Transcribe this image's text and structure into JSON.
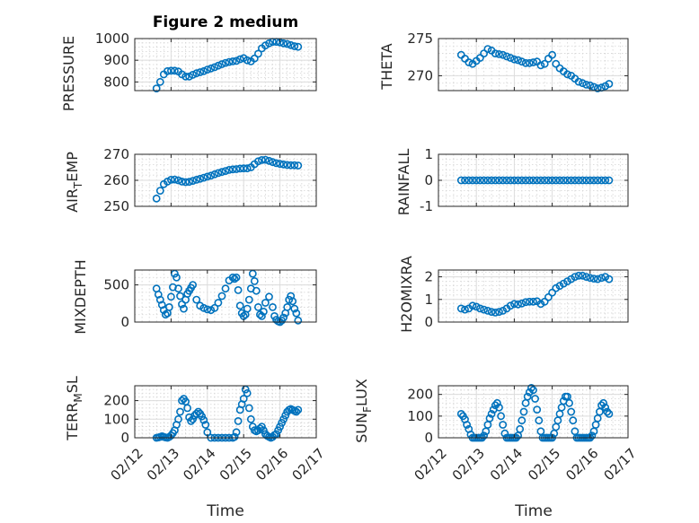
{
  "chart_data": [
    {
      "type": "scatter",
      "title": "Figure 2 medium",
      "ylabel": "PRESSURE",
      "xlabel": "",
      "ylim": [
        760,
        1000
      ],
      "yticks": [
        800,
        900,
        1000
      ],
      "ytick_labels": [
        "800",
        "900",
        "1000"
      ],
      "xlim": [
        0,
        5
      ],
      "xticks": [
        0,
        1,
        2,
        3,
        4,
        5
      ],
      "xtick_labels": [],
      "grid": true,
      "color": "#0072bd",
      "x": [
        0.6,
        0.7,
        0.8,
        0.9,
        1.0,
        1.1,
        1.2,
        1.3,
        1.4,
        1.5,
        1.6,
        1.7,
        1.8,
        1.9,
        2.0,
        2.1,
        2.2,
        2.3,
        2.4,
        2.5,
        2.6,
        2.7,
        2.8,
        2.9,
        3.0,
        3.1,
        3.2,
        3.3,
        3.4,
        3.5,
        3.6,
        3.7,
        3.8,
        3.9,
        4.0,
        4.1,
        4.2,
        4.3,
        4.4,
        4.5
      ],
      "y": [
        770,
        800,
        835,
        850,
        852,
        852,
        848,
        835,
        825,
        825,
        833,
        840,
        845,
        850,
        857,
        862,
        868,
        875,
        882,
        888,
        892,
        895,
        897,
        905,
        910,
        900,
        895,
        908,
        930,
        955,
        968,
        978,
        985,
        985,
        982,
        978,
        975,
        970,
        965,
        962
      ]
    },
    {
      "type": "scatter",
      "title": "",
      "ylabel": "THETA",
      "xlabel": "",
      "ylim": [
        268,
        275
      ],
      "yticks": [
        270,
        275
      ],
      "ytick_labels": [
        "270",
        "275"
      ],
      "xlim": [
        0,
        5
      ],
      "xticks": [
        0,
        1,
        2,
        3,
        4,
        5
      ],
      "xtick_labels": [],
      "grid": true,
      "color": "#0072bd",
      "x": [
        0.6,
        0.7,
        0.8,
        0.9,
        1.0,
        1.1,
        1.2,
        1.3,
        1.4,
        1.5,
        1.6,
        1.7,
        1.8,
        1.9,
        2.0,
        2.1,
        2.2,
        2.3,
        2.4,
        2.5,
        2.6,
        2.7,
        2.8,
        2.9,
        3.0,
        3.1,
        3.2,
        3.3,
        3.4,
        3.5,
        3.6,
        3.7,
        3.8,
        3.9,
        4.0,
        4.1,
        4.2,
        4.3,
        4.4,
        4.5
      ],
      "y": [
        272.8,
        272.3,
        271.8,
        271.6,
        272.0,
        272.4,
        273.0,
        273.6,
        273.4,
        273.0,
        272.9,
        272.8,
        272.6,
        272.4,
        272.2,
        272.1,
        271.9,
        271.7,
        271.7,
        271.8,
        271.9,
        271.4,
        271.6,
        272.3,
        272.8,
        271.6,
        271.0,
        270.6,
        270.2,
        270.0,
        269.6,
        269.2,
        269.0,
        268.8,
        268.7,
        268.5,
        268.3,
        268.4,
        268.6,
        268.9
      ]
    },
    {
      "type": "scatter",
      "title": "",
      "ylabel": "AIR_TEMP",
      "ylabel_main1": "AIR",
      "ylabel_sub": "T",
      "ylabel_main2": "EMP",
      "xlabel": "",
      "ylim": [
        250,
        270
      ],
      "yticks": [
        250,
        260,
        270
      ],
      "ytick_labels": [
        "250",
        "260",
        "270"
      ],
      "xlim": [
        0,
        5
      ],
      "xticks": [
        0,
        1,
        2,
        3,
        4,
        5
      ],
      "xtick_labels": [],
      "grid": true,
      "color": "#0072bd",
      "x": [
        0.6,
        0.7,
        0.8,
        0.9,
        1.0,
        1.1,
        1.2,
        1.3,
        1.4,
        1.5,
        1.6,
        1.7,
        1.8,
        1.9,
        2.0,
        2.1,
        2.2,
        2.3,
        2.4,
        2.5,
        2.6,
        2.7,
        2.8,
        2.9,
        3.0,
        3.1,
        3.2,
        3.3,
        3.4,
        3.5,
        3.6,
        3.7,
        3.8,
        3.9,
        4.0,
        4.1,
        4.2,
        4.3,
        4.4,
        4.5
      ],
      "y": [
        253,
        256,
        258.5,
        259.5,
        260.2,
        260.3,
        260.0,
        259.5,
        259.3,
        259.4,
        259.8,
        260.2,
        260.6,
        261.0,
        261.4,
        261.8,
        262.3,
        262.8,
        263.2,
        263.6,
        264.0,
        264.2,
        264.3,
        264.5,
        264.6,
        264.6,
        265.0,
        266.2,
        267.3,
        267.8,
        267.9,
        267.5,
        267.0,
        266.6,
        266.3,
        266.1,
        265.9,
        265.8,
        265.8,
        265.7
      ]
    },
    {
      "type": "scatter",
      "title": "",
      "ylabel": "RAINFALL",
      "xlabel": "",
      "ylim": [
        -1,
        1
      ],
      "yticks": [
        -1,
        0,
        1
      ],
      "ytick_labels": [
        "-1",
        "0",
        "1"
      ],
      "xlim": [
        0,
        5
      ],
      "xticks": [
        0,
        1,
        2,
        3,
        4,
        5
      ],
      "xtick_labels": [],
      "grid": true,
      "color": "#0072bd",
      "x": [
        0.6,
        0.7,
        0.8,
        0.9,
        1.0,
        1.1,
        1.2,
        1.3,
        1.4,
        1.5,
        1.6,
        1.7,
        1.8,
        1.9,
        2.0,
        2.1,
        2.2,
        2.3,
        2.4,
        2.5,
        2.6,
        2.7,
        2.8,
        2.9,
        3.0,
        3.1,
        3.2,
        3.3,
        3.4,
        3.5,
        3.6,
        3.7,
        3.8,
        3.9,
        4.0,
        4.1,
        4.2,
        4.3,
        4.4,
        4.5
      ],
      "y": [
        0,
        0,
        0,
        0,
        0,
        0,
        0,
        0,
        0,
        0,
        0,
        0,
        0,
        0,
        0,
        0,
        0,
        0,
        0,
        0,
        0,
        0,
        0,
        0,
        0,
        0,
        0,
        0,
        0,
        0,
        0,
        0,
        0,
        0,
        0,
        0,
        0,
        0,
        0,
        0
      ]
    },
    {
      "type": "scatter",
      "title": "",
      "ylabel": "MIXDEPTH",
      "xlabel": "",
      "ylim": [
        0,
        700
      ],
      "yticks": [
        0,
        500
      ],
      "ytick_labels": [
        "0",
        "500"
      ],
      "xlim": [
        0,
        5
      ],
      "xticks": [
        0,
        1,
        2,
        3,
        4,
        5
      ],
      "xtick_labels": [],
      "grid": true,
      "color": "#0072bd",
      "x": [
        0.6,
        0.65,
        0.7,
        0.75,
        0.8,
        0.85,
        0.9,
        0.95,
        1.0,
        1.05,
        1.1,
        1.15,
        1.2,
        1.25,
        1.3,
        1.35,
        1.4,
        1.45,
        1.5,
        1.55,
        1.6,
        1.7,
        1.8,
        1.9,
        2.0,
        2.1,
        2.2,
        2.3,
        2.4,
        2.5,
        2.6,
        2.7,
        2.75,
        2.8,
        2.85,
        2.9,
        2.95,
        3.0,
        3.05,
        3.1,
        3.15,
        3.2,
        3.25,
        3.3,
        3.35,
        3.4,
        3.45,
        3.5,
        3.55,
        3.6,
        3.7,
        3.8,
        3.85,
        3.9,
        3.95,
        4.0,
        4.05,
        4.1,
        4.15,
        4.2,
        4.25,
        4.3,
        4.35,
        4.4,
        4.45,
        4.5
      ],
      "y": [
        450,
        370,
        300,
        230,
        160,
        100,
        120,
        200,
        340,
        470,
        650,
        600,
        450,
        350,
        240,
        180,
        300,
        380,
        420,
        460,
        500,
        300,
        220,
        190,
        170,
        160,
        190,
        260,
        350,
        450,
        560,
        600,
        580,
        600,
        430,
        220,
        120,
        80,
        100,
        180,
        300,
        450,
        650,
        550,
        420,
        200,
        100,
        80,
        140,
        260,
        340,
        200,
        80,
        30,
        10,
        0,
        20,
        60,
        120,
        200,
        300,
        350,
        280,
        180,
        120,
        20
      ]
    },
    {
      "type": "scatter",
      "title": "",
      "ylabel": "H2OMIXRA",
      "xlabel": "",
      "ylim": [
        0,
        2.3
      ],
      "yticks": [
        0,
        1,
        2
      ],
      "ytick_labels": [
        "0",
        "1",
        "2"
      ],
      "xlim": [
        0,
        5
      ],
      "xticks": [
        0,
        1,
        2,
        3,
        4,
        5
      ],
      "xtick_labels": [],
      "grid": true,
      "color": "#0072bd",
      "x": [
        0.6,
        0.7,
        0.8,
        0.9,
        1.0,
        1.1,
        1.2,
        1.3,
        1.4,
        1.5,
        1.6,
        1.7,
        1.8,
        1.9,
        2.0,
        2.1,
        2.2,
        2.3,
        2.4,
        2.5,
        2.6,
        2.7,
        2.8,
        2.9,
        3.0,
        3.1,
        3.2,
        3.3,
        3.4,
        3.5,
        3.6,
        3.7,
        3.8,
        3.9,
        4.0,
        4.1,
        4.2,
        4.3,
        4.4,
        4.5
      ],
      "y": [
        0.6,
        0.55,
        0.6,
        0.72,
        0.68,
        0.6,
        0.55,
        0.5,
        0.45,
        0.42,
        0.45,
        0.5,
        0.6,
        0.72,
        0.8,
        0.78,
        0.82,
        0.88,
        0.9,
        0.9,
        0.92,
        0.8,
        0.9,
        1.1,
        1.3,
        1.5,
        1.6,
        1.7,
        1.8,
        1.9,
        2.0,
        2.05,
        2.05,
        2.0,
        1.95,
        1.92,
        1.9,
        1.95,
        2.0,
        1.9
      ]
    },
    {
      "type": "scatter",
      "title": "",
      "ylabel": "TERR_MSL",
      "ylabel_main1": "TERR",
      "ylabel_sub": "M",
      "ylabel_main2": "SL",
      "xlabel": "Time",
      "ylim": [
        0,
        280
      ],
      "yticks": [
        0,
        100,
        200
      ],
      "ytick_labels": [
        "0",
        "100",
        "200"
      ],
      "xlim": [
        0,
        5
      ],
      "xticks": [
        0,
        1,
        2,
        3,
        4,
        5
      ],
      "xtick_labels": [
        "02/12",
        "02/13",
        "02/14",
        "02/15",
        "02/16",
        "02/17"
      ],
      "grid": true,
      "color": "#0072bd",
      "x": [
        0.6,
        0.65,
        0.7,
        0.75,
        0.8,
        0.85,
        0.9,
        0.95,
        1.0,
        1.05,
        1.1,
        1.15,
        1.2,
        1.25,
        1.3,
        1.35,
        1.4,
        1.45,
        1.5,
        1.55,
        1.6,
        1.65,
        1.7,
        1.75,
        1.8,
        1.85,
        1.9,
        1.95,
        2.0,
        2.1,
        2.2,
        2.3,
        2.4,
        2.5,
        2.6,
        2.7,
        2.75,
        2.8,
        2.85,
        2.9,
        2.95,
        3.0,
        3.05,
        3.1,
        3.15,
        3.2,
        3.25,
        3.3,
        3.35,
        3.4,
        3.45,
        3.5,
        3.55,
        3.6,
        3.65,
        3.7,
        3.75,
        3.8,
        3.85,
        3.9,
        3.95,
        4.0,
        4.05,
        4.1,
        4.15,
        4.2,
        4.25,
        4.3,
        4.35,
        4.4,
        4.45,
        4.5
      ],
      "y": [
        0,
        2,
        5,
        8,
        5,
        2,
        0,
        5,
        12,
        25,
        40,
        70,
        100,
        140,
        200,
        210,
        195,
        160,
        110,
        90,
        100,
        120,
        130,
        140,
        130,
        115,
        95,
        70,
        30,
        0,
        0,
        0,
        0,
        0,
        0,
        0,
        5,
        30,
        90,
        150,
        180,
        210,
        260,
        240,
        160,
        100,
        60,
        40,
        35,
        40,
        50,
        60,
        40,
        20,
        10,
        5,
        0,
        5,
        15,
        20,
        40,
        60,
        80,
        100,
        120,
        140,
        150,
        155,
        150,
        145,
        140,
        150
      ]
    },
    {
      "type": "scatter",
      "title": "",
      "ylabel": "SUN_FLUX",
      "ylabel_main1": "SUN",
      "ylabel_sub": "F",
      "ylabel_main2": "LUX",
      "xlabel": "Time",
      "ylim": [
        0,
        240
      ],
      "yticks": [
        0,
        100,
        200
      ],
      "ytick_labels": [
        "0",
        "100",
        "200"
      ],
      "xlim": [
        0,
        5
      ],
      "xticks": [
        0,
        1,
        2,
        3,
        4,
        5
      ],
      "xtick_labels": [
        "02/12",
        "02/13",
        "02/14",
        "02/15",
        "02/16",
        "02/17"
      ],
      "grid": true,
      "color": "#0072bd",
      "x": [
        0.6,
        0.65,
        0.7,
        0.75,
        0.8,
        0.85,
        0.9,
        0.95,
        1.0,
        1.05,
        1.1,
        1.15,
        1.2,
        1.25,
        1.3,
        1.35,
        1.4,
        1.45,
        1.5,
        1.55,
        1.6,
        1.65,
        1.7,
        1.75,
        1.8,
        1.85,
        1.9,
        1.95,
        2.0,
        2.05,
        2.1,
        2.15,
        2.2,
        2.25,
        2.3,
        2.35,
        2.4,
        2.45,
        2.5,
        2.55,
        2.6,
        2.65,
        2.7,
        2.75,
        2.8,
        2.85,
        2.9,
        2.95,
        3.0,
        3.05,
        3.1,
        3.15,
        3.2,
        3.25,
        3.3,
        3.35,
        3.4,
        3.45,
        3.5,
        3.55,
        3.6,
        3.65,
        3.7,
        3.75,
        3.8,
        3.85,
        3.9,
        3.95,
        4.0,
        4.05,
        4.1,
        4.15,
        4.2,
        4.25,
        4.3,
        4.35,
        4.4,
        4.45,
        4.5
      ],
      "y": [
        110,
        100,
        85,
        60,
        40,
        15,
        0,
        0,
        0,
        0,
        0,
        0,
        10,
        30,
        60,
        90,
        110,
        130,
        150,
        160,
        140,
        100,
        60,
        20,
        0,
        0,
        0,
        0,
        0,
        0,
        10,
        40,
        80,
        120,
        160,
        190,
        210,
        230,
        220,
        180,
        130,
        80,
        30,
        0,
        0,
        0,
        0,
        0,
        0,
        20,
        50,
        80,
        110,
        140,
        170,
        190,
        190,
        160,
        120,
        80,
        30,
        0,
        0,
        0,
        0,
        0,
        0,
        0,
        0,
        10,
        30,
        60,
        90,
        120,
        150,
        160,
        140,
        120,
        110
      ]
    }
  ]
}
